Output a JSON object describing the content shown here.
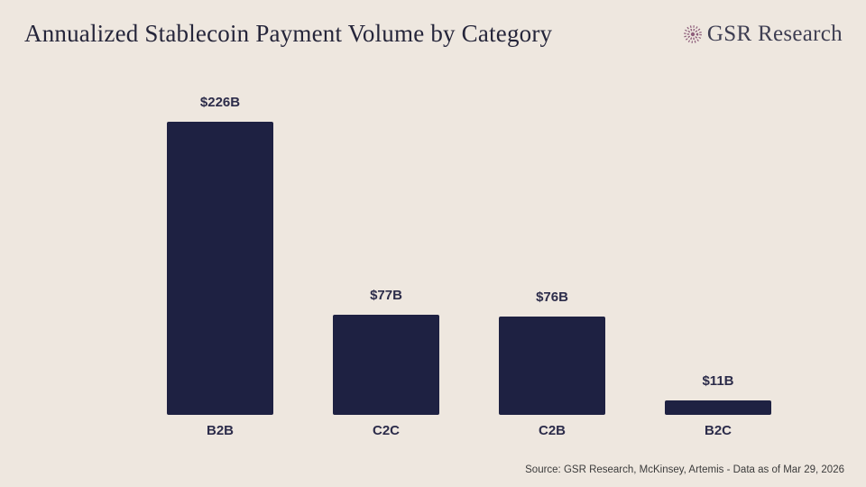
{
  "header": {
    "title": "Annualized Stablecoin Payment Volume by Category",
    "brand": "GSR Research"
  },
  "chart_data": {
    "type": "bar",
    "title": "Annualized Stablecoin Payment Volume by Category",
    "categories": [
      "B2B",
      "C2C",
      "C2B",
      "B2C"
    ],
    "values": [
      226,
      77,
      76,
      11
    ],
    "value_labels": [
      "$226B",
      "$77B",
      "$76B",
      "$11B"
    ],
    "ylim": [
      0,
      240
    ],
    "grid": false,
    "legend": "none",
    "bar_color": "#1E2142",
    "background_color": "#EEE7DF",
    "label_color": "#2C2C4A"
  },
  "footer": {
    "source": "Source: GSR Research, McKinsey, Artemis - Data as of Mar 29, 2026"
  },
  "icons": {
    "brand_icon": "starburst-icon",
    "brand_icon_color": "#8E5F7B"
  }
}
